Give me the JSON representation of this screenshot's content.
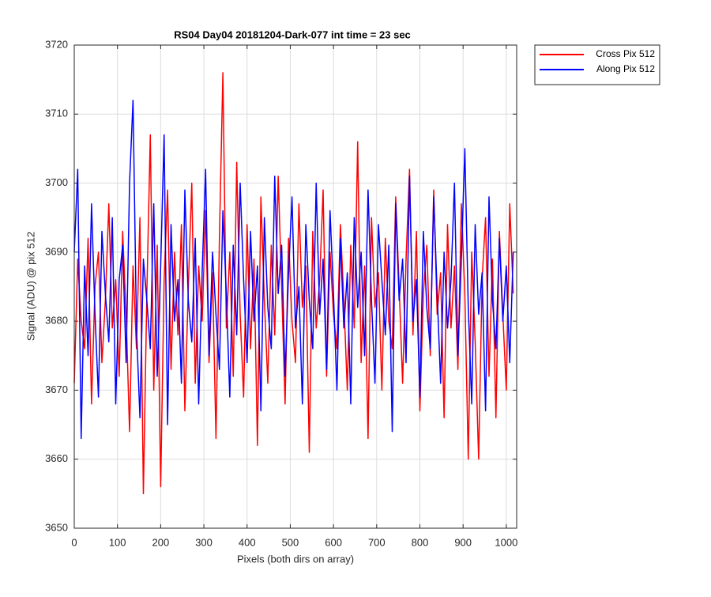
{
  "chart_data": {
    "type": "line",
    "title": "RS04 Day04 20181204-Dark-077 int time = 23 sec",
    "x_label": "Pixels (both dirs on array)",
    "y_label": "Signal (ADU) @ pix 512",
    "x": [
      0,
      8,
      16,
      24,
      32,
      40,
      48,
      56,
      64,
      72,
      80,
      88,
      96,
      104,
      112,
      120,
      128,
      136,
      144,
      152,
      160,
      168,
      176,
      184,
      192,
      200,
      208,
      216,
      224,
      232,
      240,
      248,
      256,
      264,
      272,
      280,
      288,
      296,
      304,
      312,
      320,
      328,
      336,
      344,
      352,
      360,
      368,
      376,
      384,
      392,
      400,
      408,
      416,
      424,
      432,
      440,
      448,
      456,
      464,
      472,
      480,
      488,
      496,
      504,
      512,
      520,
      528,
      536,
      544,
      552,
      560,
      568,
      576,
      584,
      592,
      600,
      608,
      616,
      624,
      632,
      640,
      648,
      656,
      664,
      672,
      680,
      688,
      696,
      704,
      712,
      720,
      728,
      736,
      744,
      752,
      760,
      768,
      776,
      784,
      792,
      800,
      808,
      816,
      824,
      832,
      840,
      848,
      856,
      864,
      872,
      880,
      888,
      896,
      904,
      912,
      920,
      928,
      936,
      944,
      952,
      960,
      968,
      976,
      984,
      992,
      1000,
      1008,
      1016
    ],
    "series": [
      {
        "name": "Cross Pix 512",
        "color": "#ff0000",
        "values": [
          3671,
          3689,
          3680,
          3676,
          3692,
          3668,
          3685,
          3690,
          3674,
          3683,
          3697,
          3679,
          3686,
          3672,
          3693,
          3681,
          3664,
          3688,
          3676,
          3695,
          3655,
          3684,
          3707,
          3670,
          3691,
          3656,
          3686,
          3699,
          3673,
          3690,
          3678,
          3694,
          3667,
          3685,
          3700,
          3671,
          3688,
          3680,
          3696,
          3674,
          3687,
          3663,
          3692,
          3716,
          3679,
          3690,
          3672,
          3703,
          3681,
          3669,
          3694,
          3676,
          3689,
          3662,
          3698,
          3683,
          3671,
          3691,
          3678,
          3701,
          3685,
          3668,
          3692,
          3680,
          3674,
          3697,
          3682,
          3688,
          3661,
          3693,
          3679,
          3686,
          3699,
          3672,
          3690,
          3681,
          3676,
          3694,
          3683,
          3670,
          3691,
          3679,
          3706,
          3674,
          3688,
          3663,
          3695,
          3682,
          3687,
          3670,
          3692,
          3680,
          3676,
          3698,
          3685,
          3671,
          3689,
          3702,
          3678,
          3693,
          3667,
          3684,
          3691,
          3675,
          3699,
          3681,
          3687,
          3666,
          3694,
          3679,
          3688,
          3673,
          3697,
          3684,
          3660,
          3690,
          3677,
          3660,
          3686,
          3695,
          3672,
          3689,
          3666,
          3693,
          3681,
          3670,
          3697,
          3684
        ]
      },
      {
        "name": "Along Pix 512",
        "color": "#0000ff",
        "values": [
          3690,
          3702,
          3663,
          3688,
          3675,
          3697,
          3681,
          3669,
          3693,
          3684,
          3677,
          3695,
          3668,
          3686,
          3691,
          3674,
          3700,
          3712,
          3679,
          3666,
          3689,
          3683,
          3676,
          3697,
          3672,
          3688,
          3707,
          3665,
          3694,
          3680,
          3686,
          3671,
          3699,
          3683,
          3677,
          3692,
          3668,
          3687,
          3702,
          3675,
          3690,
          3681,
          3673,
          3696,
          3684,
          3669,
          3691,
          3678,
          3700,
          3686,
          3674,
          3693,
          3680,
          3688,
          3667,
          3695,
          3682,
          3676,
          3701,
          3684,
          3691,
          3672,
          3687,
          3698,
          3679,
          3685,
          3668,
          3694,
          3683,
          3676,
          3700,
          3681,
          3689,
          3673,
          3696,
          3684,
          3670,
          3692,
          3679,
          3687,
          3668,
          3695,
          3682,
          3690,
          3675,
          3699,
          3683,
          3671,
          3694,
          3686,
          3678,
          3691,
          3664,
          3697,
          3683,
          3689,
          3674,
          3701,
          3680,
          3686,
          3669,
          3693,
          3682,
          3676,
          3698,
          3684,
          3671,
          3690,
          3679,
          3686,
          3700,
          3675,
          3689,
          3705,
          3682,
          3668,
          3694,
          3681,
          3687,
          3667,
          3698,
          3683,
          3676,
          3692,
          3680,
          3688,
          3674,
          3690
        ]
      }
    ],
    "xlim": [
      0,
      1024
    ],
    "xticks": [
      0,
      100,
      200,
      300,
      400,
      500,
      600,
      700,
      800,
      900,
      1000
    ],
    "ylim": [
      3650,
      3720
    ],
    "yticks": [
      3650,
      3660,
      3670,
      3680,
      3690,
      3700,
      3710,
      3720
    ],
    "grid": true,
    "legend": "outside-northeast"
  }
}
